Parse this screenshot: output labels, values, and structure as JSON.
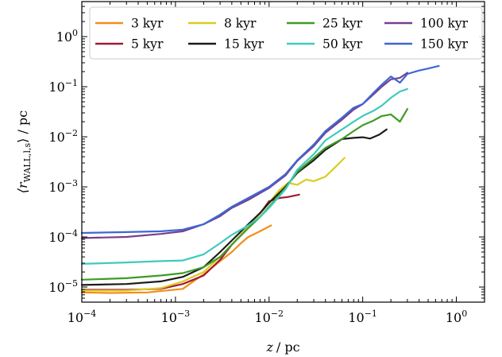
{
  "chart_data": {
    "type": "line",
    "title": "",
    "xlabel_var": "z",
    "xlabel_unit": "/ pc",
    "ylabel_main": "⟨r",
    "ylabel_sub": "WALL,l,s",
    "ylabel_end": "⟩ / pc",
    "x_scale": "log",
    "y_scale": "log",
    "xlim": [
      0.0001,
      2.0
    ],
    "ylim": [
      5e-06,
      5.0
    ],
    "x_ticks": [
      {
        "value": 0.0001,
        "base": "10",
        "exp": "−4"
      },
      {
        "value": 0.001,
        "base": "10",
        "exp": "−3"
      },
      {
        "value": 0.01,
        "base": "10",
        "exp": "−2"
      },
      {
        "value": 0.1,
        "base": "10",
        "exp": "−1"
      },
      {
        "value": 1.0,
        "base": "10",
        "exp": "0"
      }
    ],
    "y_ticks": [
      {
        "value": 1e-05,
        "base": "10",
        "exp": "−5"
      },
      {
        "value": 0.0001,
        "base": "10",
        "exp": "−4"
      },
      {
        "value": 0.001,
        "base": "10",
        "exp": "−3"
      },
      {
        "value": 0.01,
        "base": "10",
        "exp": "−2"
      },
      {
        "value": 0.1,
        "base": "10",
        "exp": "−1"
      },
      {
        "value": 1.0,
        "base": "10",
        "exp": "0"
      }
    ],
    "grid": false,
    "legend_position": "top-right",
    "series": [
      {
        "name": "3 kyr",
        "color": "#f28e1c",
        "x": [
          0.0001,
          0.0002,
          0.0005,
          0.0012,
          0.0016,
          0.002,
          0.003,
          0.004,
          0.005,
          0.006,
          0.008,
          0.0105
        ],
        "y": [
          7.8e-06,
          7.6e-06,
          7.8e-06,
          9.2e-06,
          1.35e-05,
          1.8e-05,
          3.3e-05,
          5e-05,
          7.5e-05,
          0.0001,
          0.00013,
          0.00017
        ]
      },
      {
        "name": "5 kyr",
        "color": "#a01c35",
        "x": [
          0.0001,
          0.0003,
          0.0007,
          0.0012,
          0.002,
          0.003,
          0.004,
          0.005,
          0.006,
          0.008,
          0.01,
          0.013,
          0.016,
          0.021
        ],
        "y": [
          8.8e-06,
          8.8e-06,
          9.2e-06,
          1.15e-05,
          1.7e-05,
          3.5e-05,
          7e-05,
          0.00011,
          0.00016,
          0.00029,
          0.00052,
          0.0006,
          0.00063,
          0.0007
        ]
      },
      {
        "name": "8 kyr",
        "color": "#dccb22",
        "x": [
          0.0001,
          0.0003,
          0.0007,
          0.0012,
          0.002,
          0.003,
          0.004,
          0.006,
          0.008,
          0.01,
          0.013,
          0.016,
          0.02,
          0.025,
          0.03,
          0.04,
          0.05,
          0.064
        ],
        "y": [
          8.5e-06,
          8.5e-06,
          9.5e-06,
          1.3e-05,
          2e-05,
          4e-05,
          7e-05,
          0.00016,
          0.00029,
          0.00048,
          0.00088,
          0.0012,
          0.0011,
          0.0014,
          0.0013,
          0.0016,
          0.0024,
          0.0038
        ]
      },
      {
        "name": "15 kyr",
        "color": "#1c1c1c",
        "x": [
          0.0001,
          0.0003,
          0.0007,
          0.0012,
          0.002,
          0.003,
          0.004,
          0.006,
          0.008,
          0.01,
          0.015,
          0.02,
          0.03,
          0.04,
          0.06,
          0.08,
          0.1,
          0.12,
          0.15,
          0.18
        ],
        "y": [
          1.1e-05,
          1.15e-05,
          1.3e-05,
          1.6e-05,
          2.5e-05,
          5e-05,
          8.5e-05,
          0.00018,
          0.0003,
          0.00048,
          0.001,
          0.0019,
          0.0034,
          0.0055,
          0.009,
          0.0095,
          0.0098,
          0.0092,
          0.011,
          0.014
        ]
      },
      {
        "name": "25 kyr",
        "color": "#3e9c24",
        "x": [
          0.0001,
          0.0003,
          0.0007,
          0.0012,
          0.002,
          0.003,
          0.004,
          0.006,
          0.008,
          0.01,
          0.015,
          0.02,
          0.03,
          0.04,
          0.06,
          0.08,
          0.1,
          0.13,
          0.16,
          0.2,
          0.25,
          0.3
        ],
        "y": [
          1.4e-05,
          1.5e-05,
          1.7e-05,
          1.9e-05,
          2.5e-05,
          4e-05,
          7e-05,
          0.00015,
          0.00025,
          0.0004,
          0.00095,
          0.002,
          0.0038,
          0.006,
          0.009,
          0.013,
          0.017,
          0.021,
          0.026,
          0.028,
          0.02,
          0.036
        ]
      },
      {
        "name": "50 kyr",
        "color": "#3fcabd",
        "x": [
          0.0001,
          0.0003,
          0.0007,
          0.0012,
          0.002,
          0.003,
          0.004,
          0.006,
          0.008,
          0.01,
          0.015,
          0.02,
          0.03,
          0.04,
          0.06,
          0.08,
          0.1,
          0.13,
          0.16,
          0.2,
          0.25,
          0.3
        ],
        "y": [
          2.9e-05,
          3.1e-05,
          3.3e-05,
          3.4e-05,
          4.5e-05,
          7.5e-05,
          0.00011,
          0.00017,
          0.00025,
          0.00038,
          0.0009,
          0.0022,
          0.0045,
          0.0085,
          0.014,
          0.02,
          0.026,
          0.033,
          0.042,
          0.06,
          0.08,
          0.09
        ]
      },
      {
        "name": "100 kyr",
        "color": "#77408c",
        "x": [
          0.0001,
          0.0003,
          0.0007,
          0.0012,
          0.002,
          0.003,
          0.004,
          0.006,
          0.008,
          0.01,
          0.015,
          0.02,
          0.03,
          0.04,
          0.06,
          0.08,
          0.1,
          0.13,
          0.16,
          0.2,
          0.25,
          0.3
        ],
        "y": [
          9.5e-05,
          0.0001,
          0.000115,
          0.00013,
          0.00018,
          0.00026,
          0.00038,
          0.00055,
          0.00075,
          0.00095,
          0.0017,
          0.0033,
          0.0065,
          0.012,
          0.022,
          0.035,
          0.045,
          0.07,
          0.1,
          0.14,
          0.15,
          0.19
        ]
      },
      {
        "name": "150 kyr",
        "color": "#3e67d3",
        "x": [
          0.0001,
          0.0003,
          0.0007,
          0.0012,
          0.002,
          0.003,
          0.004,
          0.006,
          0.008,
          0.01,
          0.015,
          0.02,
          0.03,
          0.04,
          0.06,
          0.08,
          0.1,
          0.13,
          0.16,
          0.2,
          0.25,
          0.3,
          0.4,
          0.5,
          0.65
        ],
        "y": [
          0.00012,
          0.000125,
          0.00013,
          0.00014,
          0.00018,
          0.00028,
          0.0004,
          0.0006,
          0.0008,
          0.001,
          0.0018,
          0.0034,
          0.007,
          0.013,
          0.024,
          0.038,
          0.045,
          0.075,
          0.11,
          0.16,
          0.12,
          0.18,
          0.21,
          0.23,
          0.26
        ]
      }
    ]
  }
}
